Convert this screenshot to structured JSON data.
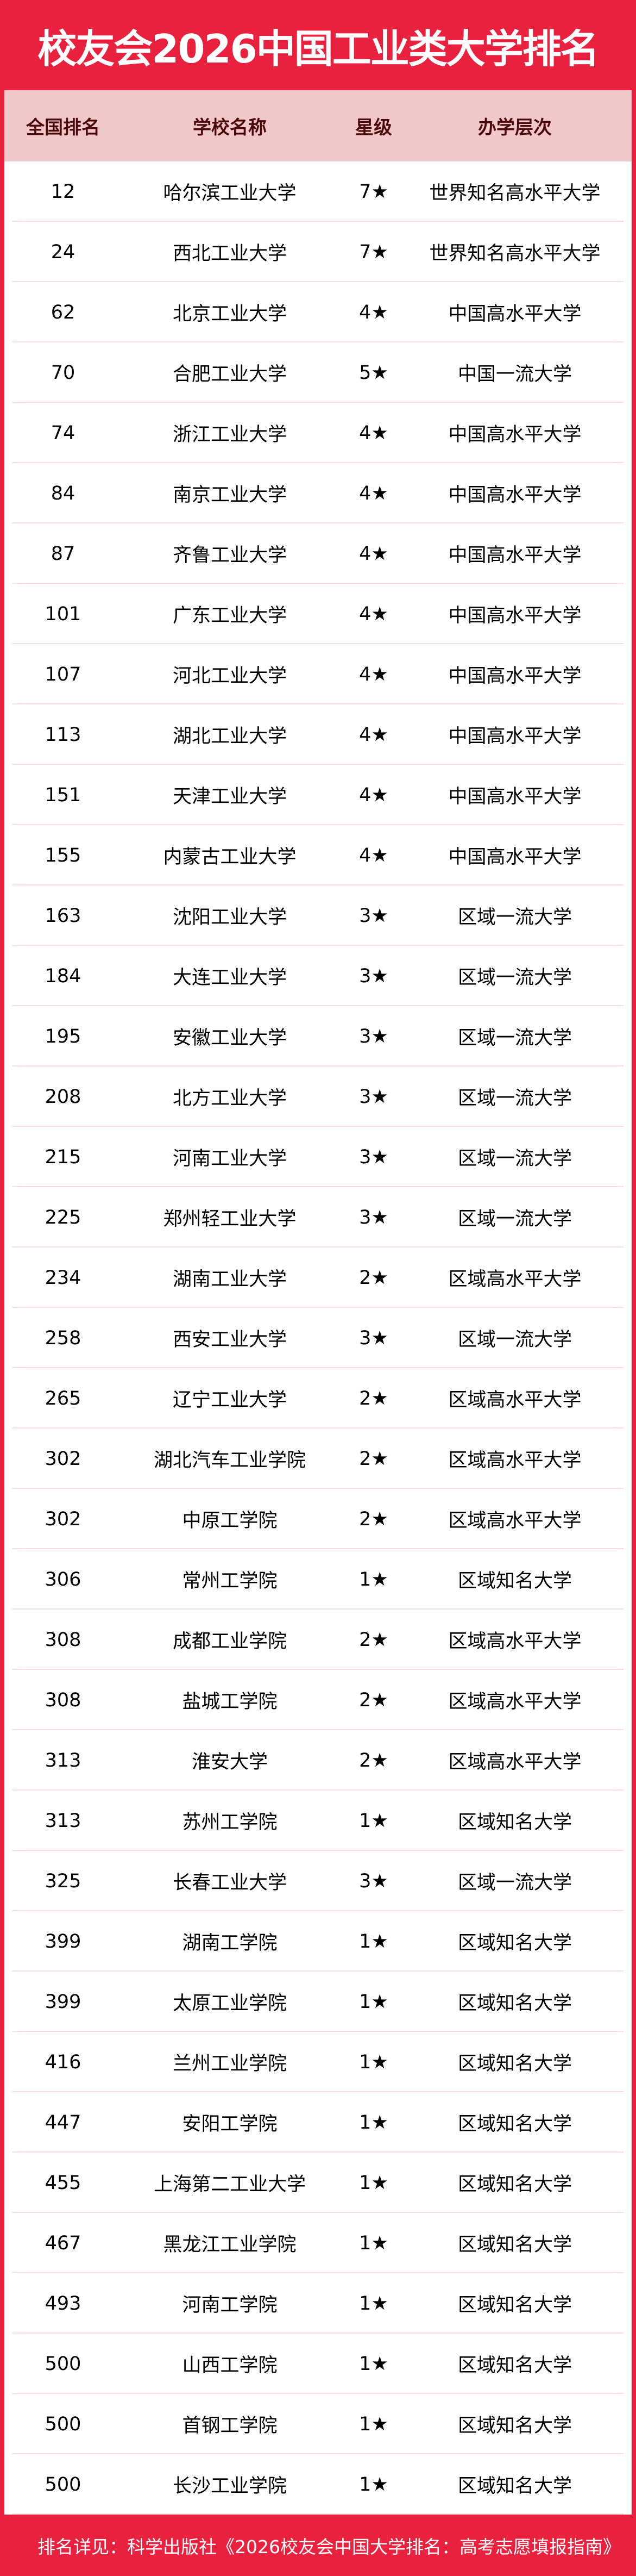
{
  "title": "校友会2026中国工业类大学排名",
  "colors": {
    "brand_red": "#E8213F",
    "header_bg": "#F0C8CA"
  },
  "columns": [
    "全国排名",
    "学校名称",
    "星级",
    "办学层次"
  ],
  "rows": [
    [
      "12",
      "哈尔滨工业大学",
      "7★",
      "世界知名高水平大学"
    ],
    [
      "24",
      "西北工业大学",
      "7★",
      "世界知名高水平大学"
    ],
    [
      "62",
      "北京工业大学",
      "4★",
      "中国高水平大学"
    ],
    [
      "70",
      "合肥工业大学",
      "5★",
      "中国一流大学"
    ],
    [
      "74",
      "浙江工业大学",
      "4★",
      "中国高水平大学"
    ],
    [
      "84",
      "南京工业大学",
      "4★",
      "中国高水平大学"
    ],
    [
      "87",
      "齐鲁工业大学",
      "4★",
      "中国高水平大学"
    ],
    [
      "101",
      "广东工业大学",
      "4★",
      "中国高水平大学"
    ],
    [
      "107",
      "河北工业大学",
      "4★",
      "中国高水平大学"
    ],
    [
      "113",
      "湖北工业大学",
      "4★",
      "中国高水平大学"
    ],
    [
      "151",
      "天津工业大学",
      "4★",
      "中国高水平大学"
    ],
    [
      "155",
      "内蒙古工业大学",
      "4★",
      "中国高水平大学"
    ],
    [
      "163",
      "沈阳工业大学",
      "3★",
      "区域一流大学"
    ],
    [
      "184",
      "大连工业大学",
      "3★",
      "区域一流大学"
    ],
    [
      "195",
      "安徽工业大学",
      "3★",
      "区域一流大学"
    ],
    [
      "208",
      "北方工业大学",
      "3★",
      "区域一流大学"
    ],
    [
      "215",
      "河南工业大学",
      "3★",
      "区域一流大学"
    ],
    [
      "225",
      "郑州轻工业大学",
      "3★",
      "区域一流大学"
    ],
    [
      "234",
      "湖南工业大学",
      "2★",
      "区域高水平大学"
    ],
    [
      "258",
      "西安工业大学",
      "3★",
      "区域一流大学"
    ],
    [
      "265",
      "辽宁工业大学",
      "2★",
      "区域高水平大学"
    ],
    [
      "302",
      "湖北汽车工业学院",
      "2★",
      "区域高水平大学"
    ],
    [
      "302",
      "中原工学院",
      "2★",
      "区域高水平大学"
    ],
    [
      "306",
      "常州工学院",
      "1★",
      "区域知名大学"
    ],
    [
      "308",
      "成都工业学院",
      "2★",
      "区域高水平大学"
    ],
    [
      "308",
      "盐城工学院",
      "2★",
      "区域高水平大学"
    ],
    [
      "313",
      "淮安大学",
      "2★",
      "区域高水平大学"
    ],
    [
      "313",
      "苏州工学院",
      "1★",
      "区域知名大学"
    ],
    [
      "325",
      "长春工业大学",
      "3★",
      "区域一流大学"
    ],
    [
      "399",
      "湖南工学院",
      "1★",
      "区域知名大学"
    ],
    [
      "399",
      "太原工业学院",
      "1★",
      "区域知名大学"
    ],
    [
      "416",
      "兰州工业学院",
      "1★",
      "区域知名大学"
    ],
    [
      "447",
      "安阳工学院",
      "1★",
      "区域知名大学"
    ],
    [
      "455",
      "上海第二工业大学",
      "1★",
      "区域知名大学"
    ],
    [
      "467",
      "黑龙江工业学院",
      "1★",
      "区域知名大学"
    ],
    [
      "493",
      "河南工学院",
      "1★",
      "区域知名大学"
    ],
    [
      "500",
      "山西工学院",
      "1★",
      "区域知名大学"
    ],
    [
      "500",
      "首钢工学院",
      "1★",
      "区域知名大学"
    ],
    [
      "500",
      "长沙工业学院",
      "1★",
      "区域知名大学"
    ]
  ],
  "footer": "排名详见：科学出版社《2026校友会中国大学排名：高考志愿填报指南》"
}
